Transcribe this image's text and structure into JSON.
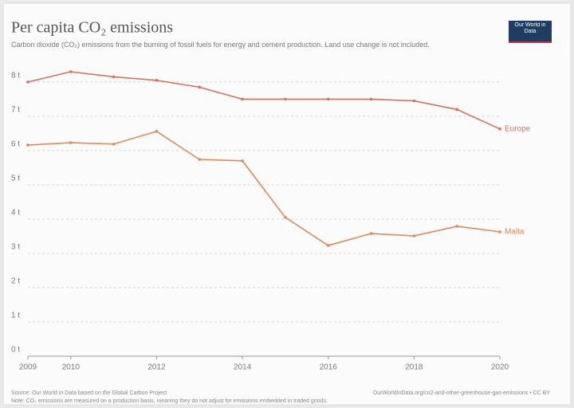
{
  "chart_data": {
    "type": "line",
    "title": "Per capita CO₂ emissions",
    "subtitle": "Carbon dioxide (CO₂) emissions from the burning of fossil fuels for energy and cement production. Land use change is not included.",
    "logo": "Our World in Data",
    "source": "Source: Our World in Data based on the Global Carbon Project",
    "url": "OurWorldInData.org/co2-and-other-greenhouse-gas-emissions • CC BY",
    "note": "Note: CO₂ emissions are measured on a production basis, meaning they do not adjust for emissions embedded in traded goods.",
    "x": [
      2009,
      2010,
      2011,
      2012,
      2013,
      2014,
      2015,
      2016,
      2017,
      2018,
      2019,
      2020
    ],
    "xlim": [
      2009,
      2020
    ],
    "xticks": [
      2009,
      2010,
      2012,
      2014,
      2016,
      2018,
      2020
    ],
    "ylim": [
      0,
      8.3
    ],
    "yticks": [
      {
        "value": 0,
        "label": "0 t"
      },
      {
        "value": 1,
        "label": "1 t"
      },
      {
        "value": 2,
        "label": "2 t"
      },
      {
        "value": 3,
        "label": "3 t"
      },
      {
        "value": 4,
        "label": "4 t"
      },
      {
        "value": 5,
        "label": "5 t"
      },
      {
        "value": 6,
        "label": "6 t"
      },
      {
        "value": 7,
        "label": "7 t"
      },
      {
        "value": 8,
        "label": "8 t"
      }
    ],
    "grid": true,
    "series": [
      {
        "name": "Europe",
        "color": "#d8715c",
        "values": [
          8.0,
          8.3,
          8.15,
          8.05,
          7.85,
          7.5,
          7.5,
          7.5,
          7.5,
          7.45,
          7.2,
          6.63
        ]
      },
      {
        "name": "Malta",
        "color": "#e08a55",
        "values": [
          6.16,
          6.23,
          6.19,
          6.56,
          5.74,
          5.7,
          4.05,
          3.23,
          3.58,
          3.51,
          3.79,
          3.63
        ]
      }
    ]
  }
}
